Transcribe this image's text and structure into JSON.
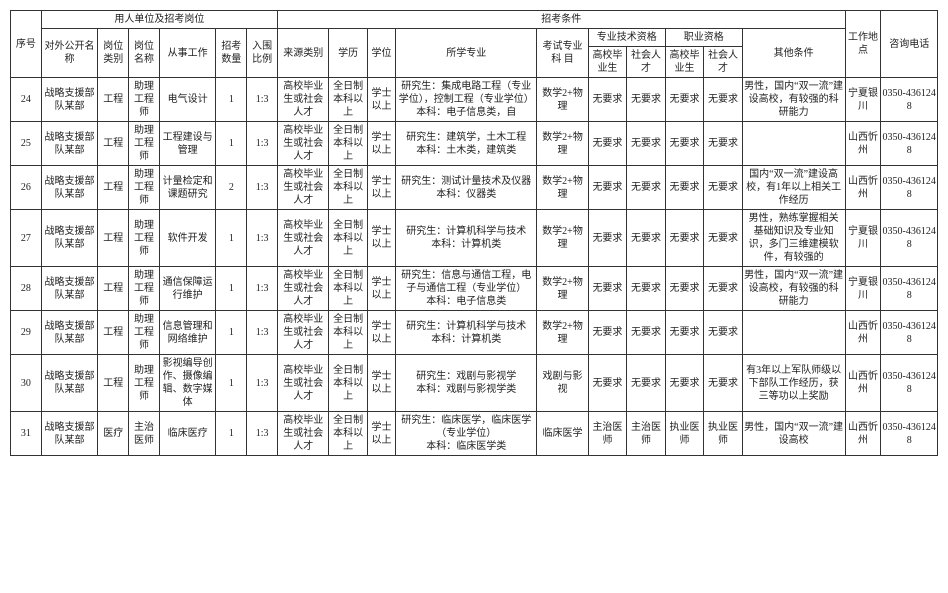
{
  "headers": {
    "seq": "序号",
    "unit_group": "用人单位及招考岗位",
    "cond_group": "招考条件",
    "workplace": "工作地点",
    "phone": "咨询电话",
    "unit_name": "对外公开名   称",
    "post_cat": "岗位类别",
    "post_name": "岗位名称",
    "work": "从事工作",
    "count": "招考数量",
    "ratio": "入围比例",
    "source": "来源类别",
    "edu": "学历",
    "degree": "学位",
    "major": "所学专业",
    "exam": "考试专业科   目",
    "protech": "专业技术资格",
    "voc": "职业资格",
    "grad": "高校毕业生",
    "social": "社会人才",
    "other": "其他条件"
  },
  "rows": [
    {
      "seq": "24",
      "unit_name": "战略支援部队某部",
      "post_cat": "工程",
      "post_name": "助理工程师",
      "work": "电气设计",
      "count": "1",
      "ratio": "1:3",
      "source": "高校毕业生或社会人才",
      "edu": "全日制本科以上",
      "degree": "学士以上",
      "major": "研究生：集成电路工程（专业学位），控制工程（专业学位）\n本科：电子信息类，自",
      "exam": "数学2+物理",
      "pt_grad": "无要求",
      "pt_social": "无要求",
      "voc_grad": "无要求",
      "voc_social": "无要求",
      "other": "男性，国内“双一流”建设高校，有较强的科研能力",
      "workplace": "宁夏银川",
      "phone": "0350-4361248"
    },
    {
      "seq": "25",
      "unit_name": "战略支援部队某部",
      "post_cat": "工程",
      "post_name": "助理工程师",
      "work": "工程建设与管理",
      "count": "1",
      "ratio": "1:3",
      "source": "高校毕业生或社会人才",
      "edu": "全日制本科以上",
      "degree": "学士以上",
      "major": "研究生：建筑学，土木工程\n本科：土木类，建筑类",
      "exam": "数学2+物理",
      "pt_grad": "无要求",
      "pt_social": "无要求",
      "voc_grad": "无要求",
      "voc_social": "无要求",
      "other": "",
      "workplace": "山西忻州",
      "phone": "0350-4361248"
    },
    {
      "seq": "26",
      "unit_name": "战略支援部队某部",
      "post_cat": "工程",
      "post_name": "助理工程师",
      "work": "计量检定和课题研究",
      "count": "2",
      "ratio": "1:3",
      "source": "高校毕业生或社会人才",
      "edu": "全日制本科以上",
      "degree": "学士以上",
      "major": "研究生：测试计量技术及仪器\n本科：仪器类",
      "exam": "数学2+物理",
      "pt_grad": "无要求",
      "pt_social": "无要求",
      "voc_grad": "无要求",
      "voc_social": "无要求",
      "other": "国内“双一流”建设高校，有1年以上相关工作经历",
      "workplace": "山西忻州",
      "phone": "0350-4361248"
    },
    {
      "seq": "27",
      "unit_name": "战略支援部队某部",
      "post_cat": "工程",
      "post_name": "助理工程师",
      "work": "软件开发",
      "count": "1",
      "ratio": "1:3",
      "source": "高校毕业生或社会人才",
      "edu": "全日制本科以上",
      "degree": "学士以上",
      "major": "研究生：计算机科学与技术\n本科：计算机类",
      "exam": "数学2+物理",
      "pt_grad": "无要求",
      "pt_social": "无要求",
      "voc_grad": "无要求",
      "voc_social": "无要求",
      "other": "男性，熟练掌握相关基础知识及专业知识，多门三维建模软件，有较强的",
      "workplace": "宁夏银川",
      "phone": "0350-4361248"
    },
    {
      "seq": "28",
      "unit_name": "战略支援部队某部",
      "post_cat": "工程",
      "post_name": "助理工程师",
      "work": "通信保障运行维护",
      "count": "1",
      "ratio": "1:3",
      "source": "高校毕业生或社会人才",
      "edu": "全日制本科以上",
      "degree": "学士以上",
      "major": "研究生：信息与通信工程，电子与通信工程（专业学位）\n本科：电子信息类",
      "exam": "数学2+物理",
      "pt_grad": "无要求",
      "pt_social": "无要求",
      "voc_grad": "无要求",
      "voc_social": "无要求",
      "other": "男性，国内“双一流”建设高校，有较强的科研能力",
      "workplace": "宁夏银川",
      "phone": "0350-4361248"
    },
    {
      "seq": "29",
      "unit_name": "战略支援部队某部",
      "post_cat": "工程",
      "post_name": "助理工程师",
      "work": "信息管理和网络维护",
      "count": "1",
      "ratio": "1:3",
      "source": "高校毕业生或社会人才",
      "edu": "全日制本科以上",
      "degree": "学士以上",
      "major": "研究生：计算机科学与技术\n本科：计算机类",
      "exam": "数学2+物理",
      "pt_grad": "无要求",
      "pt_social": "无要求",
      "voc_grad": "无要求",
      "voc_social": "无要求",
      "other": "",
      "workplace": "山西忻州",
      "phone": "0350-4361248"
    },
    {
      "seq": "30",
      "unit_name": "战略支援部队某部",
      "post_cat": "工程",
      "post_name": "助理工程师",
      "work": "影视编导创作、摄像编辑、数字媒体",
      "count": "1",
      "ratio": "1:3",
      "source": "高校毕业生或社会人才",
      "edu": "全日制本科以上",
      "degree": "学士以上",
      "major": "研究生：戏剧与影视学\n本科：戏剧与影视学类",
      "exam": "戏剧与影视",
      "pt_grad": "无要求",
      "pt_social": "无要求",
      "voc_grad": "无要求",
      "voc_social": "无要求",
      "other": "有3年以上军队师级以下部队工作经历，获三等功以上奖励",
      "workplace": "山西忻州",
      "phone": "0350-4361248"
    },
    {
      "seq": "31",
      "unit_name": "战略支援部队某部",
      "post_cat": "医疗",
      "post_name": "主治医师",
      "work": "临床医疗",
      "count": "1",
      "ratio": "1:3",
      "source": "高校毕业生或社会人才",
      "edu": "全日制本科以上",
      "degree": "学士以上",
      "major": "研究生：临床医学，临床医学（专业学位）\n本科：临床医学类",
      "exam": "临床医学",
      "pt_grad": "主治医师",
      "pt_social": "主治医师",
      "voc_grad": "执业医师",
      "voc_social": "执业医师",
      "other": "男性，国内“双一流”建设高校",
      "workplace": "山西忻州",
      "phone": "0350-4361248"
    }
  ],
  "col_widths": [
    "24",
    "44",
    "24",
    "24",
    "44",
    "24",
    "24",
    "40",
    "30",
    "22",
    "110",
    "40",
    "30",
    "30",
    "30",
    "30",
    "80",
    "28",
    "44"
  ],
  "colors": {
    "border": "#333333",
    "text": "#222222",
    "background": "#ffffff"
  },
  "font_size_pt": 10
}
